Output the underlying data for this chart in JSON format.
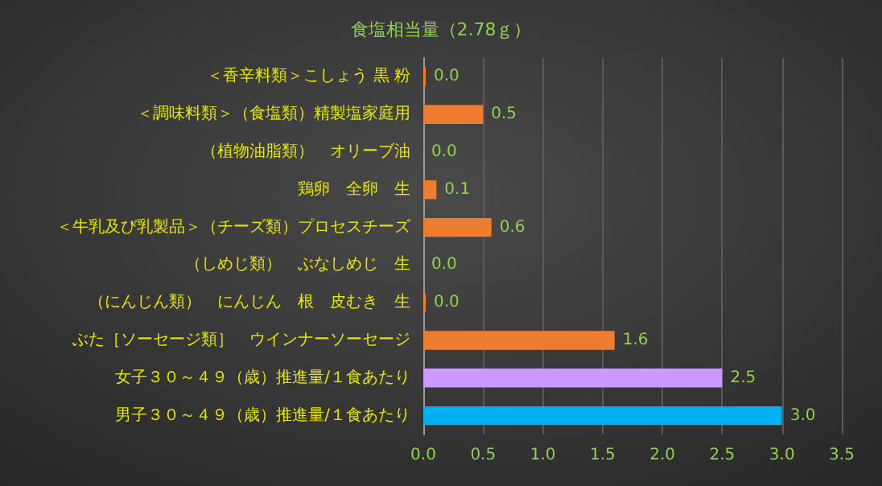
{
  "chart_data": {
    "type": "bar",
    "orientation": "horizontal",
    "title": "食塩相当量（2.78ｇ）",
    "categories": [
      "＜香辛料類＞こしょう 黒 粉",
      "＜調味料類＞（食塩類）精製塩家庭用",
      "（植物油脂類）　オリーブ油",
      "鶏卵　全卵　生",
      "＜牛乳及び乳製品＞（チーズ類）プロセスチーズ",
      "（しめじ類）　ぶなしめじ　生",
      "（にんじん類）　にんじん　根　皮むき　生",
      "ぶた［ソーセージ類］　ウインナーソーセージ",
      "女子３０～４９（歳）推進量/１食あたり",
      "男子３０～４９（歳）推進量/１食あたり"
    ],
    "values": [
      0.02,
      0.5,
      0,
      0.11,
      0.57,
      0,
      0.02,
      1.6,
      2.5,
      3.0
    ],
    "value_labels": [
      "0.0",
      "0.5",
      "0.0",
      "0.1",
      "0.6",
      "0.0",
      "0.0",
      "1.6",
      "2.5",
      "3.0"
    ],
    "colors": [
      "#ed7d31",
      "#ed7d31",
      "#ed7d31",
      "#ed7d31",
      "#ed7d31",
      "#ed7d31",
      "#ed7d31",
      "#ed7d31",
      "#cc99ff",
      "#00b0f0"
    ],
    "xlim": [
      0,
      3.5
    ],
    "xticks": [
      {
        "value": 0,
        "label": "0.0"
      },
      {
        "value": 0.5,
        "label": "0.5"
      },
      {
        "value": 1,
        "label": "1.0"
      },
      {
        "value": 1.5,
        "label": "1.5"
      },
      {
        "value": 2,
        "label": "2.0"
      },
      {
        "value": 2.5,
        "label": "2.5"
      },
      {
        "value": 3,
        "label": "3.0"
      },
      {
        "value": 3.5,
        "label": "3.5"
      }
    ],
    "grid": "x"
  }
}
